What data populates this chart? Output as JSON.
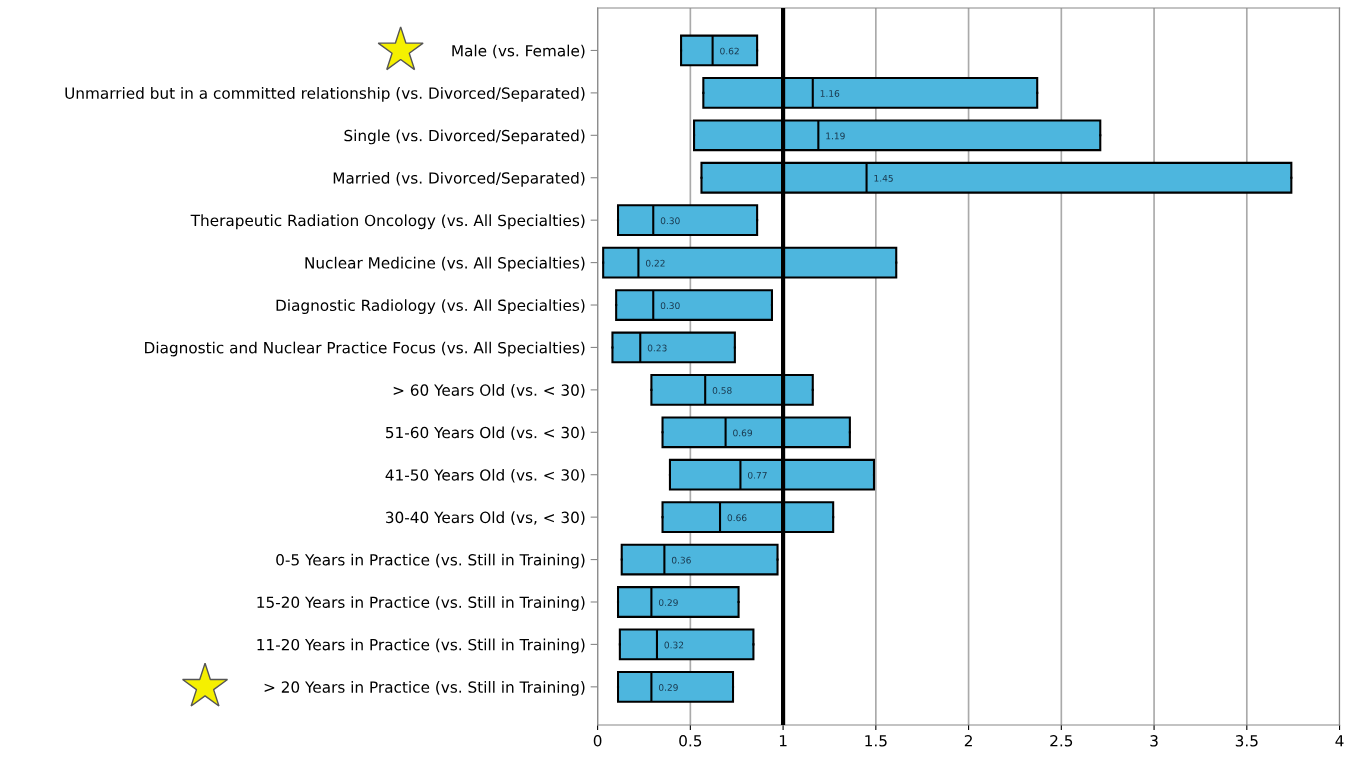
{
  "chart_data": {
    "type": "box",
    "orientation": "horizontal",
    "categories": [
      "Male (vs. Female)",
      "Unmarried but in a committed relationship (vs. Divorced/Separated)",
      "Single (vs. Divorced/Separated)",
      "Married (vs. Divorced/Separated)",
      "Therapeutic Radiation Oncology (vs. All Specialties)",
      "Nuclear Medicine (vs. All Specialties)",
      "Diagnostic Radiology (vs. All Specialties)",
      "Diagnostic and Nuclear Practice Focus (vs. All Specialties)",
      "> 60 Years Old (vs. < 30)",
      "51-60 Years Old (vs. < 30)",
      "41-50 Years Old (vs. < 30)",
      "30-40 Years Old (vs, < 30)",
      "0-5 Years in Practice (vs. Still in Training)",
      "15-20 Years in Practice (vs. Still in Training)",
      "11-20 Years in Practice (vs. Still in Training)",
      "> 20 Years in Practice (vs. Still in Training)"
    ],
    "color": "#4db6de",
    "boxes": [
      {
        "low": 0.45,
        "q1": 0.45,
        "median": 0.62,
        "q3": 0.86,
        "high": 0.86
      },
      {
        "low": 0.57,
        "q1": 0.57,
        "median": 1.16,
        "q3": 2.37,
        "high": 2.37
      },
      {
        "low": 0.52,
        "q1": 0.52,
        "median": 1.19,
        "q3": 2.71,
        "high": 2.71
      },
      {
        "low": 0.56,
        "q1": 0.56,
        "median": 1.45,
        "q3": 3.74,
        "high": 3.74
      },
      {
        "low": 0.11,
        "q1": 0.11,
        "median": 0.3,
        "q3": 0.86,
        "high": 0.86
      },
      {
        "low": 0.03,
        "q1": 0.03,
        "median": 0.22,
        "q3": 1.61,
        "high": 1.61
      },
      {
        "low": 0.1,
        "q1": 0.1,
        "median": 0.3,
        "q3": 0.94,
        "high": 0.94
      },
      {
        "low": 0.08,
        "q1": 0.08,
        "median": 0.23,
        "q3": 0.74,
        "high": 0.74
      },
      {
        "low": 0.29,
        "q1": 0.29,
        "median": 0.58,
        "q3": 1.16,
        "high": 1.16
      },
      {
        "low": 0.35,
        "q1": 0.35,
        "median": 0.69,
        "q3": 1.36,
        "high": 1.36
      },
      {
        "low": 0.39,
        "q1": 0.39,
        "median": 0.77,
        "q3": 1.49,
        "high": 1.49
      },
      {
        "low": 0.35,
        "q1": 0.35,
        "median": 0.66,
        "q3": 1.27,
        "high": 1.27
      },
      {
        "low": 0.13,
        "q1": 0.13,
        "median": 0.36,
        "q3": 0.97,
        "high": 0.97
      },
      {
        "low": 0.11,
        "q1": 0.11,
        "median": 0.29,
        "q3": 0.76,
        "high": 0.76
      },
      {
        "low": 0.12,
        "q1": 0.12,
        "median": 0.32,
        "q3": 0.84,
        "high": 0.84
      },
      {
        "low": 0.11,
        "q1": 0.11,
        "median": 0.29,
        "q3": 0.73,
        "high": 0.73
      }
    ],
    "annotations": [
      {
        "text": "0.62",
        "x": 0.62,
        "y": "Male (vs. Female)"
      },
      {
        "text": "1.16",
        "x": 1.16,
        "y": "Unmarried but in a committed relationship (vs. Divorced/Separated)"
      },
      {
        "text": "1.19",
        "x": 1.19,
        "y": "Single (vs. Divorced/Separated)"
      },
      {
        "text": "1.45",
        "x": 1.45,
        "y": "Married (vs. Divorced/Separated)"
      },
      {
        "text": "0.30",
        "x": 0.3,
        "y": "Therapeutic Radiation Oncology (vs. All Specialties)"
      },
      {
        "text": "0.22",
        "x": 0.22,
        "y": "Nuclear Medicine (vs. All Specialties)"
      },
      {
        "text": "0.30",
        "x": 0.3,
        "y": "Diagnostic Radiology (vs. All Specialties)"
      },
      {
        "text": "0.23",
        "x": 0.23,
        "y": "Diagnostic and Nuclear Practice Focus (vs. All Specialties)"
      },
      {
        "text": "0.58",
        "x": 0.58,
        "y": "> 60 Years Old (vs. < 30)"
      },
      {
        "text": "0.69",
        "x": 0.69,
        "y": "51-60 Years Old (vs. < 30)"
      },
      {
        "text": "0.77",
        "x": 0.77,
        "y": "41-50 Years Old (vs. < 30)"
      },
      {
        "text": "0.66",
        "x": 0.66,
        "y": "30-40 Years Old (vs, < 30)"
      },
      {
        "text": "0.36",
        "x": 0.36,
        "y": "0-5 Years in Practice (vs. Still in Training)"
      },
      {
        "text": "0.29",
        "x": 0.29,
        "y": "15-20 Years in Practice (vs. Still in Training)"
      },
      {
        "text": "0.32",
        "x": 0.32,
        "y": "11-20 Years in Practice (vs. Still in Training)"
      },
      {
        "text": "0.29",
        "x": 0.29,
        "y": "> 20 Years in Practice (vs. Still in Training)"
      }
    ],
    "xlim": [
      0,
      4
    ],
    "xticks": [
      0,
      0.5,
      1,
      1.5,
      2,
      2.5,
      3,
      3.5,
      4
    ],
    "grid": "x",
    "ref_lines": [
      {
        "axis": "x",
        "value": 1,
        "color": "#000000",
        "line_style": "solid"
      }
    ]
  }
}
